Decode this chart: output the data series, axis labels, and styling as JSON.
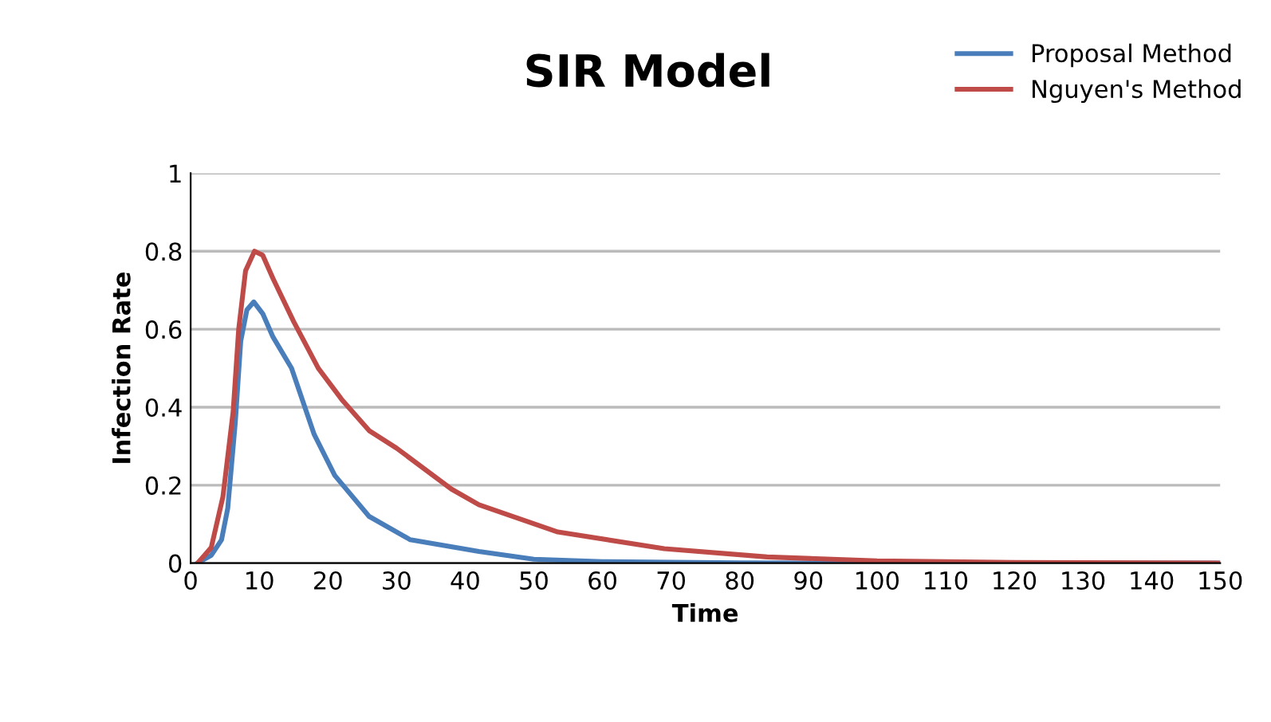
{
  "chart_data": {
    "type": "line",
    "title": "SIR Model",
    "xlabel": "Time",
    "ylabel": "Infection Rate",
    "xlim": [
      0,
      150
    ],
    "xticks": [
      0,
      10,
      20,
      30,
      40,
      50,
      60,
      70,
      80,
      90,
      100,
      110,
      120,
      130,
      140,
      150
    ],
    "ylim": [
      0,
      1
    ],
    "yticks": [
      0,
      0.2,
      0.4,
      0.6,
      0.8,
      1
    ],
    "grid": "y",
    "legend": "top right",
    "marker": "none",
    "line_style": "solid",
    "series": [
      {
        "name": "Proposal Method",
        "color": "#4a7ebb",
        "x": [
          1,
          3,
          4.5,
          5.4,
          6.5,
          7.3,
          8.2,
          9.2,
          10.5,
          12,
          14.7,
          18,
          21,
          26,
          32,
          42,
          50,
          60,
          80,
          100,
          150
        ],
        "values": [
          0,
          0.02,
          0.06,
          0.14,
          0.36,
          0.57,
          0.65,
          0.67,
          0.64,
          0.58,
          0.5,
          0.33,
          0.225,
          0.12,
          0.06,
          0.03,
          0.01,
          0.004,
          0.001,
          0,
          0
        ]
      },
      {
        "name": "Nguyen's Method",
        "color": "#be4b48",
        "x": [
          1,
          3,
          4.7,
          6.2,
          7,
          8,
          9.3,
          10.5,
          12,
          15,
          18.6,
          22,
          26,
          30,
          38,
          42,
          53.5,
          69,
          84,
          100,
          120,
          150
        ],
        "values": [
          0,
          0.04,
          0.17,
          0.39,
          0.6,
          0.75,
          0.8,
          0.79,
          0.73,
          0.62,
          0.5,
          0.42,
          0.34,
          0.295,
          0.19,
          0.15,
          0.08,
          0.037,
          0.016,
          0.006,
          0.002,
          0
        ]
      }
    ]
  }
}
